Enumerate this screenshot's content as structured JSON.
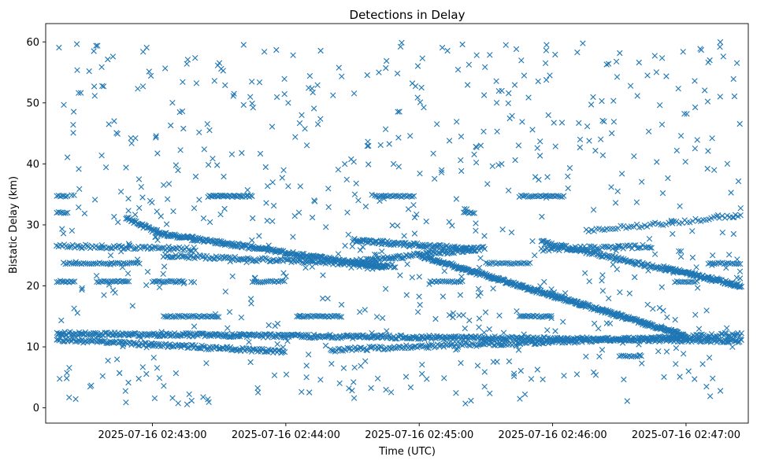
{
  "chart_data": {
    "type": "scatter",
    "title": "Detections in Delay",
    "xlabel": "Time (UTC)",
    "ylabel": "Bistatic Delay (km)",
    "x_axis_type": "time",
    "xlim": [
      "2025-07-16 02:42:12",
      "2025-07-16 02:47:28"
    ],
    "ylim": [
      -2.5,
      63
    ],
    "x_ticks": [
      "2025-07-16 02:43:00",
      "2025-07-16 02:44:00",
      "2025-07-16 02:45:00",
      "2025-07-16 02:46:00",
      "2025-07-16 02:47:00"
    ],
    "y_ticks": [
      0,
      10,
      20,
      30,
      40,
      50,
      60
    ],
    "grid": false,
    "marker": "x",
    "color": "#1f77b4",
    "series": [
      {
        "tracks": [
          {
            "x0": "2025-07-16 02:42:17",
            "x1": "2025-07-16 02:44:00",
            "y0": 11.2,
            "y1": 9.2,
            "step_s": 0.6
          },
          {
            "x0": "2025-07-16 02:44:20",
            "x1": "2025-07-16 02:47:25",
            "y0": 9.5,
            "y1": 12.0,
            "step_s": 0.7
          },
          {
            "x0": "2025-07-16 02:42:17",
            "x1": "2025-07-16 02:47:25",
            "y0": 12.2,
            "y1": 11.0,
            "step_s": 0.5
          },
          {
            "x0": "2025-07-16 02:42:17",
            "x1": "2025-07-16 02:43:20",
            "y0": 26.6,
            "y1": 26.0,
            "step_s": 0.8
          },
          {
            "x0": "2025-07-16 02:42:48",
            "x1": "2025-07-16 02:43:03",
            "y0": 31.2,
            "y1": 28.6,
            "step_s": 0.4
          },
          {
            "x0": "2025-07-16 02:43:03",
            "x1": "2025-07-16 02:44:45",
            "y0": 28.6,
            "y1": 23.0,
            "step_s": 0.4
          },
          {
            "x0": "2025-07-16 02:43:05",
            "x1": "2025-07-16 02:44:50",
            "y0": 25.0,
            "y1": 23.3,
            "step_s": 0.7
          },
          {
            "x0": "2025-07-16 02:44:30",
            "x1": "2025-07-16 02:45:30",
            "y0": 24.0,
            "y1": 26.2,
            "step_s": 0.6
          },
          {
            "x0": "2025-07-16 02:44:30",
            "x1": "2025-07-16 02:45:25",
            "y0": 27.5,
            "y1": 26.0,
            "step_s": 0.5
          },
          {
            "x0": "2025-07-16 02:45:00",
            "x1": "2025-07-16 02:47:00",
            "y0": 25.0,
            "y1": 11.8,
            "step_s": 0.3
          },
          {
            "x0": "2025-07-16 02:45:55",
            "x1": "2025-07-16 02:47:25",
            "y0": 27.2,
            "y1": 20.0,
            "step_s": 0.5
          },
          {
            "x0": "2025-07-16 02:45:55",
            "x1": "2025-07-16 02:46:45",
            "y0": 26.0,
            "y1": 26.5,
            "step_s": 0.8
          },
          {
            "x0": "2025-07-16 02:46:15",
            "x1": "2025-07-16 02:47:25",
            "y0": 29.0,
            "y1": 31.5,
            "step_s": 1.2
          },
          {
            "x0": "2025-07-16 02:46:50",
            "x1": "2025-07-16 02:47:25",
            "y0": 23.0,
            "y1": 20.0,
            "step_s": 0.7
          }
        ],
        "row_segments": [
          {
            "y": 34.7,
            "x0": "2025-07-16 02:43:25",
            "x1": "2025-07-16 02:43:45",
            "step_s": 0.6
          },
          {
            "y": 34.7,
            "x0": "2025-07-16 02:44:40",
            "x1": "2025-07-16 02:44:58",
            "step_s": 0.8
          },
          {
            "y": 34.7,
            "x0": "2025-07-16 02:45:45",
            "x1": "2025-07-16 02:46:05",
            "step_s": 0.8
          },
          {
            "y": 34.7,
            "x0": "2025-07-16 02:42:17",
            "x1": "2025-07-16 02:42:22",
            "step_s": 0.8
          },
          {
            "y": 20.7,
            "x0": "2025-07-16 02:42:17",
            "x1": "2025-07-16 02:42:25",
            "step_s": 0.8
          },
          {
            "y": 20.7,
            "x0": "2025-07-16 02:42:35",
            "x1": "2025-07-16 02:42:50",
            "step_s": 0.8
          },
          {
            "y": 20.7,
            "x0": "2025-07-16 02:43:00",
            "x1": "2025-07-16 02:43:15",
            "step_s": 0.8
          },
          {
            "y": 20.7,
            "x0": "2025-07-16 02:43:45",
            "x1": "2025-07-16 02:44:00",
            "step_s": 0.9
          },
          {
            "y": 20.7,
            "x0": "2025-07-16 02:45:05",
            "x1": "2025-07-16 02:45:20",
            "step_s": 0.9
          },
          {
            "y": 20.7,
            "x0": "2025-07-16 02:46:55",
            "x1": "2025-07-16 02:47:05",
            "step_s": 0.9
          },
          {
            "y": 15.0,
            "x0": "2025-07-16 02:43:05",
            "x1": "2025-07-16 02:43:30",
            "step_s": 0.8
          },
          {
            "y": 15.0,
            "x0": "2025-07-16 02:44:05",
            "x1": "2025-07-16 02:44:25",
            "step_s": 0.8
          },
          {
            "y": 15.0,
            "x0": "2025-07-16 02:45:45",
            "x1": "2025-07-16 02:46:00",
            "step_s": 0.8
          },
          {
            "y": 23.7,
            "x0": "2025-07-16 02:42:20",
            "x1": "2025-07-16 02:42:55",
            "step_s": 0.9
          },
          {
            "y": 23.7,
            "x0": "2025-07-16 02:45:30",
            "x1": "2025-07-16 02:45:50",
            "step_s": 0.9
          },
          {
            "y": 23.7,
            "x0": "2025-07-16 02:47:10",
            "x1": "2025-07-16 02:47:25",
            "step_s": 0.9
          },
          {
            "y": 32.0,
            "x0": "2025-07-16 02:42:17",
            "x1": "2025-07-16 02:42:22",
            "step_s": 0.8
          },
          {
            "y": 32.0,
            "x0": "2025-07-16 02:45:20",
            "x1": "2025-07-16 02:45:25",
            "step_s": 0.8
          },
          {
            "y": 8.5,
            "x0": "2025-07-16 02:46:30",
            "x1": "2025-07-16 02:46:40",
            "step_s": 0.9
          }
        ],
        "clutter": {
          "x_range": [
            "2025-07-16 02:42:17",
            "2025-07-16 02:47:25"
          ],
          "y_range": [
            0.5,
            60
          ],
          "point_count": 720
        }
      }
    ]
  }
}
